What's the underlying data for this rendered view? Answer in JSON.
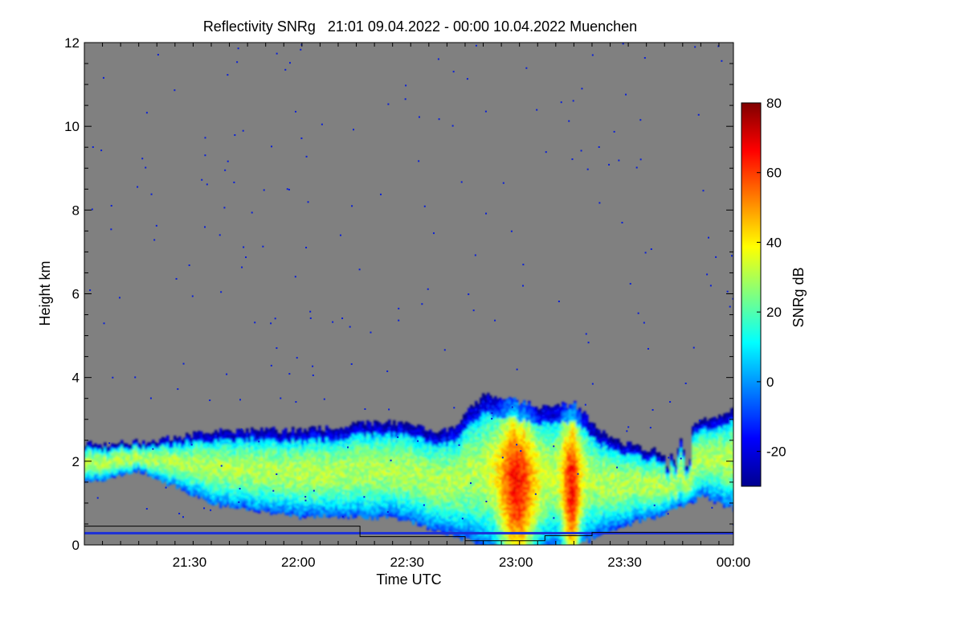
{
  "chart_data": {
    "type": "heatmap",
    "title": "Reflectivity SNRg   21:01 09.04.2022 - 00:00 10.04.2022 Muenchen",
    "xlabel": "Time UTC",
    "ylabel": "Height km",
    "x_tick_labels": [
      "21:30",
      "22:00",
      "22:30",
      "23:00",
      "23:30",
      "00:00"
    ],
    "x_tick_values_min": [
      29,
      59,
      89,
      119,
      149,
      179
    ],
    "xlim_min": [
      0,
      179
    ],
    "y_tick_labels": [
      "0",
      "2",
      "4",
      "6",
      "8",
      "10",
      "12"
    ],
    "y_tick_values": [
      0,
      2,
      4,
      6,
      8,
      10,
      12
    ],
    "ylim": [
      0,
      12
    ],
    "colorbar": {
      "label": "SNRg dB",
      "range": [
        -30,
        80
      ],
      "tick_labels": [
        "-20",
        "0",
        "20",
        "40",
        "60",
        "80"
      ],
      "tick_values": [
        -20,
        0,
        20,
        40,
        60,
        80
      ],
      "colormap": "jet"
    },
    "background_color": "#808080",
    "cloud_echo": {
      "description_points": [
        {
          "t": 0,
          "base_km": 1.5,
          "top_km": 2.4
        },
        {
          "t": 15,
          "base_km": 1.8,
          "top_km": 2.45
        },
        {
          "t": 35,
          "base_km": 1.0,
          "top_km": 2.7
        },
        {
          "t": 60,
          "base_km": 0.7,
          "top_km": 2.75
        },
        {
          "t": 85,
          "base_km": 0.7,
          "top_km": 2.95
        },
        {
          "t": 100,
          "base_km": 0.3,
          "top_km": 2.7
        },
        {
          "t": 110,
          "base_km": 0.0,
          "top_km": 3.6
        },
        {
          "t": 125,
          "base_km": 0.0,
          "top_km": 3.3
        },
        {
          "t": 135,
          "base_km": 0.0,
          "top_km": 3.35
        },
        {
          "t": 145,
          "base_km": 0.4,
          "top_km": 2.5
        },
        {
          "t": 160,
          "base_km": 0.8,
          "top_km": 2.2
        },
        {
          "t": 170,
          "base_km": 1.2,
          "top_km": 3.0
        },
        {
          "t": 179,
          "base_km": 0.9,
          "top_km": 3.2
        }
      ],
      "max_snr_db": 75,
      "core_times_min": [
        119,
        134
      ]
    },
    "blue_line_height_km": 0.28,
    "black_step_line": [
      {
        "t": 0,
        "km": 0.45
      },
      {
        "t": 76,
        "km": 0.45
      },
      {
        "t": 76,
        "km": 0.2
      },
      {
        "t": 105,
        "km": 0.2
      },
      {
        "t": 105,
        "km": 0.1
      },
      {
        "t": 127,
        "km": 0.1
      },
      {
        "t": 127,
        "km": 0.22
      },
      {
        "t": 140,
        "km": 0.22
      },
      {
        "t": 140,
        "km": 0.3
      },
      {
        "t": 179,
        "km": 0.3
      }
    ]
  }
}
